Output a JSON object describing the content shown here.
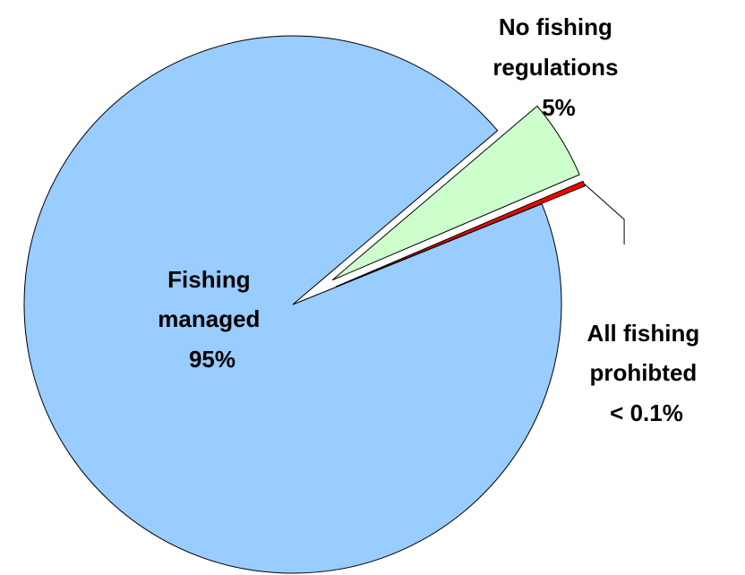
{
  "chart_data": {
    "type": "pie",
    "title": "",
    "categories": [
      "Fishing managed",
      "No fishing regulations",
      "All fishing prohibted"
    ],
    "series": [
      {
        "values": [
          95,
          5,
          0.1
        ]
      }
    ],
    "value_labels": [
      "95%",
      "5%",
      "< 0.1%"
    ],
    "colors": [
      "#99CCFF",
      "#CCFFCC",
      "#FF0000"
    ],
    "slice_labels": [
      {
        "lines": [
          "Fishing",
          "managed",
          "95%"
        ]
      },
      {
        "lines": [
          "No fishing",
          "regulations",
          "5%"
        ]
      },
      {
        "lines": [
          "All fishing",
          "prohibted",
          "< 0.1%"
        ]
      }
    ],
    "legend": "none",
    "exploded": [
      "No fishing regulations",
      "All fishing prohibted"
    ]
  }
}
